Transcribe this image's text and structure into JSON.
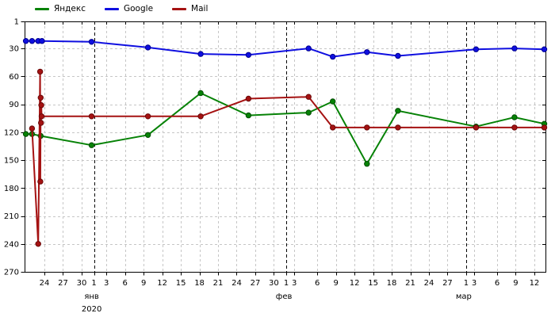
{
  "chart_data": {
    "type": "line",
    "title": "",
    "xlabel": "",
    "ylabel": "",
    "y_axis": {
      "inverted": true,
      "range": [
        1,
        270
      ],
      "ticks": [
        1,
        30,
        60,
        90,
        120,
        150,
        180,
        210,
        240,
        270
      ]
    },
    "x_axis": {
      "unit": "days_from_2020-01-01",
      "ticks": [
        {
          "d": -8,
          "label": "24"
        },
        {
          "d": -5,
          "label": "27"
        },
        {
          "d": -2,
          "label": "30"
        },
        {
          "d": 0,
          "label": "1"
        },
        {
          "d": 2,
          "label": "3"
        },
        {
          "d": 5,
          "label": "6"
        },
        {
          "d": 8,
          "label": "9"
        },
        {
          "d": 11,
          "label": "12"
        },
        {
          "d": 14,
          "label": "15"
        },
        {
          "d": 17,
          "label": "18"
        },
        {
          "d": 20,
          "label": "21"
        },
        {
          "d": 23,
          "label": "24"
        },
        {
          "d": 26,
          "label": "27"
        },
        {
          "d": 29,
          "label": "30"
        },
        {
          "d": 31,
          "label": "1"
        },
        {
          "d": 32.3,
          "label": "3"
        },
        {
          "d": 36,
          "label": "6"
        },
        {
          "d": 39,
          "label": "9"
        },
        {
          "d": 42,
          "label": "12"
        },
        {
          "d": 45,
          "label": "15"
        },
        {
          "d": 48,
          "label": "18"
        },
        {
          "d": 51,
          "label": "21"
        },
        {
          "d": 54,
          "label": "24"
        },
        {
          "d": 57,
          "label": "27"
        },
        {
          "d": 60,
          "label": "1"
        },
        {
          "d": 61.3,
          "label": "3"
        },
        {
          "d": 65,
          "label": "6"
        },
        {
          "d": 68,
          "label": "9"
        },
        {
          "d": 71,
          "label": "12"
        }
      ],
      "month_markers": [
        {
          "d": 0,
          "label": "янв",
          "year": "2020"
        },
        {
          "d": 31,
          "label": "фев",
          "year": ""
        },
        {
          "d": 60,
          "label": "мар",
          "year": ""
        }
      ]
    },
    "grid": true,
    "legend_position": "top-left",
    "colors": {
      "grid": "#c6c6c6",
      "axis": "#000000",
      "month_line": "#000000",
      "text": "#000000"
    },
    "series": [
      {
        "id": "yandex",
        "name": "Яндекс",
        "color": "#068206",
        "point_border": "#034d03",
        "points": [
          [
            -11,
            122
          ],
          [
            -10,
            122
          ],
          [
            -8.6,
            124
          ],
          [
            -0.4,
            134
          ],
          [
            8.7,
            123
          ],
          [
            17.2,
            78
          ],
          [
            24.9,
            102
          ],
          [
            34.6,
            99
          ],
          [
            38.5,
            87
          ],
          [
            44,
            154
          ],
          [
            49,
            97
          ],
          [
            61.6,
            114
          ],
          [
            67.8,
            104
          ],
          [
            72.6,
            111
          ]
        ]
      },
      {
        "id": "google",
        "name": "Google",
        "color": "#0f0fe0",
        "point_border": "#00008f",
        "points": [
          [
            -11,
            22
          ],
          [
            -10,
            22
          ],
          [
            -9,
            22
          ],
          [
            -8.4,
            22
          ],
          [
            -0.4,
            23
          ],
          [
            8.7,
            29
          ],
          [
            17.2,
            36
          ],
          [
            24.9,
            37
          ],
          [
            34.6,
            30
          ],
          [
            38.5,
            39
          ],
          [
            44,
            34
          ],
          [
            49,
            38
          ],
          [
            61.6,
            31
          ],
          [
            67.8,
            30
          ],
          [
            72.6,
            31
          ]
        ]
      },
      {
        "id": "mail",
        "name": "Mail",
        "color": "#a51212",
        "point_border": "#6b0808",
        "points": [
          [
            -10,
            116
          ],
          [
            -9,
            240
          ],
          [
            -8.7,
            55
          ],
          [
            -8.65,
            173
          ],
          [
            -8.6,
            83
          ],
          [
            -8.55,
            110
          ],
          [
            -8.5,
            91
          ],
          [
            -8.45,
            103
          ],
          [
            -0.4,
            103
          ],
          [
            8.7,
            103
          ],
          [
            17.2,
            103
          ],
          [
            24.9,
            84
          ],
          [
            34.6,
            82
          ],
          [
            38.5,
            115
          ],
          [
            44,
            115
          ],
          [
            49,
            115
          ],
          [
            61.6,
            115
          ],
          [
            67.8,
            115
          ],
          [
            72.6,
            115
          ]
        ]
      }
    ]
  }
}
